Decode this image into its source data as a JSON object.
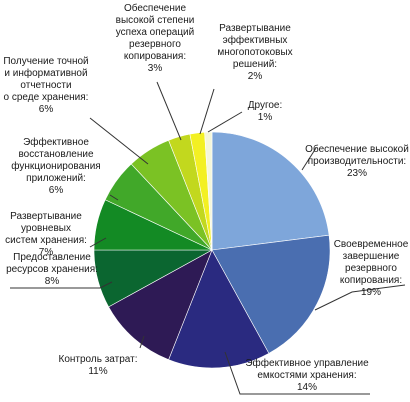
{
  "chart_data": {
    "type": "pie",
    "title": "",
    "start_angle_deg": 0,
    "direction": "clockwise",
    "slices": [
      {
        "label_lines": [
          "Обеспечение высокой",
          "производительности:",
          "23%"
        ],
        "value": 23,
        "color": "#7ea6da"
      },
      {
        "label_lines": [
          "Своевременное",
          "завершение",
          "резервного",
          "копирования:",
          "19%"
        ],
        "value": 19,
        "color": "#4a6eb0"
      },
      {
        "label_lines": [
          "Эффективное управление",
          "емкостями хранения:",
          "14%"
        ],
        "value": 14,
        "color": "#2a2a80"
      },
      {
        "label_lines": [
          "Контроль затрат:",
          "11%"
        ],
        "value": 11,
        "color": "#2e1a55"
      },
      {
        "label_lines": [
          "Предоставление",
          "ресурсов хранения:",
          "8%"
        ],
        "value": 8,
        "color": "#0b6630"
      },
      {
        "label_lines": [
          "Развертывание",
          "уровневых",
          "систем хранения:",
          "7%"
        ],
        "value": 7,
        "color": "#138a24"
      },
      {
        "label_lines": [
          "Эффективное",
          "восстановление",
          "функционирования",
          "приложений:",
          "6%"
        ],
        "value": 6,
        "color": "#41a829"
      },
      {
        "label_lines": [
          "Получение точной",
          "и информативной",
          "отчетности",
          "о среде хранения:",
          "6%"
        ],
        "value": 6,
        "color": "#7bc224"
      },
      {
        "label_lines": [
          "Обеспечение",
          "высокой степени",
          "успеха операций",
          "резервного",
          "копирования:",
          "3%"
        ],
        "value": 3,
        "color": "#c2d81e"
      },
      {
        "label_lines": [
          "Развертывание",
          "эффективных",
          "многопотоковых",
          "решений:",
          "2%"
        ],
        "value": 2,
        "color": "#f3f023"
      },
      {
        "label_lines": [
          "Другое:",
          "1%"
        ],
        "value": 1,
        "color": "#f4f6da"
      }
    ]
  }
}
